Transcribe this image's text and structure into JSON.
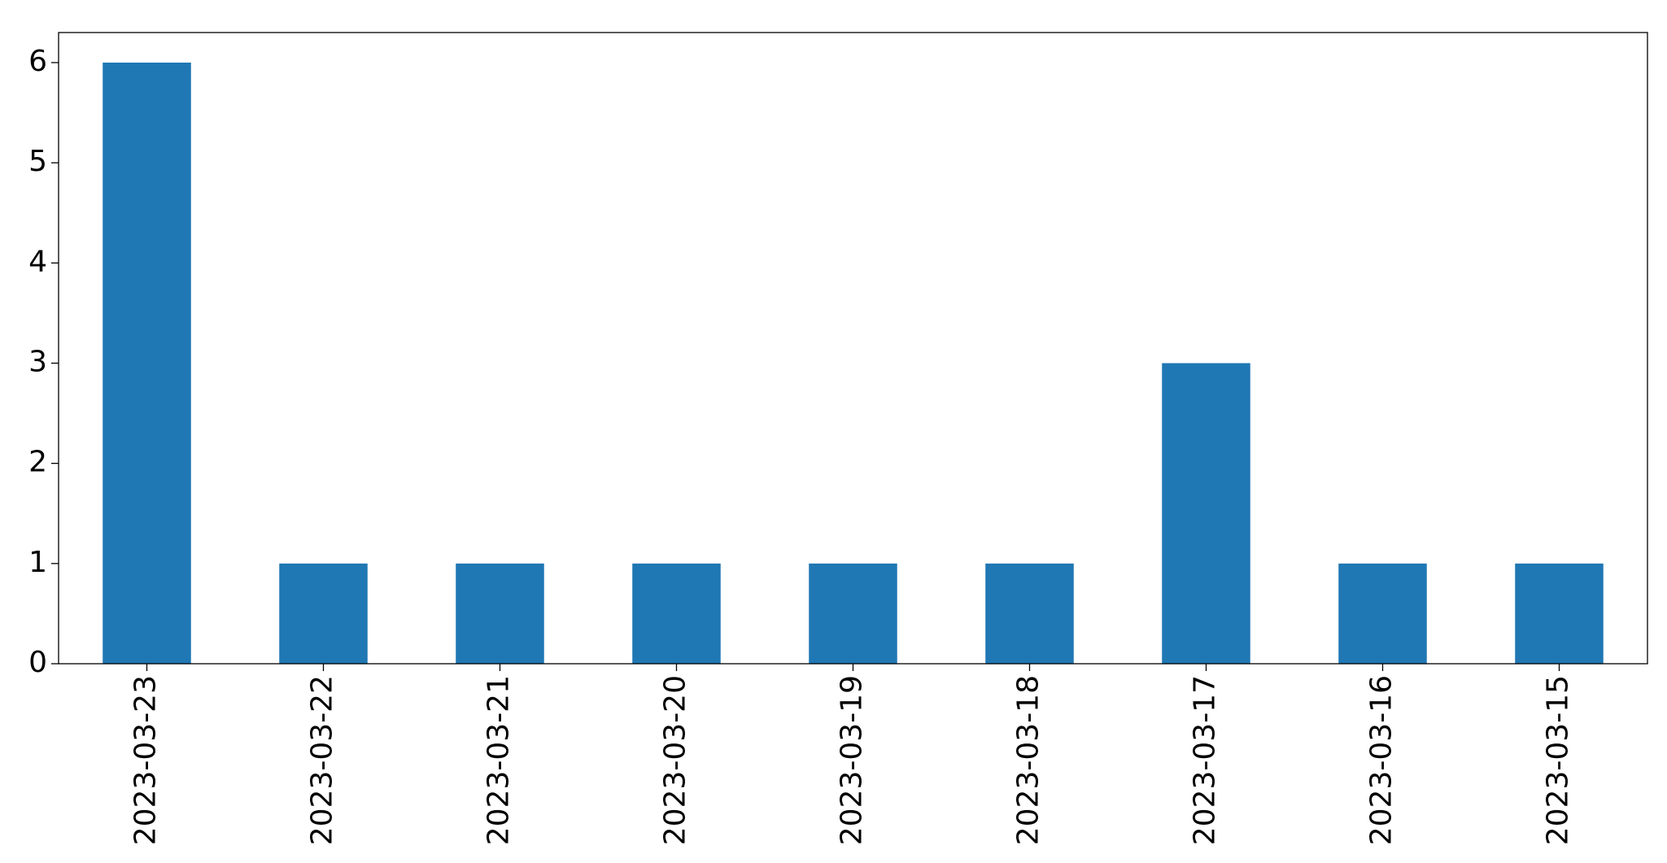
{
  "chart_data": {
    "type": "bar",
    "categories": [
      "2023-03-23",
      "2023-03-22",
      "2023-03-21",
      "2023-03-20",
      "2023-03-19",
      "2023-03-18",
      "2023-03-17",
      "2023-03-16",
      "2023-03-15"
    ],
    "values": [
      6,
      1,
      1,
      1,
      1,
      1,
      3,
      1,
      1
    ],
    "color": "#1f77b4",
    "ylim": [
      0,
      6.3
    ],
    "yticks": [
      0,
      1,
      2,
      3,
      4,
      5,
      6
    ],
    "grid": false
  }
}
